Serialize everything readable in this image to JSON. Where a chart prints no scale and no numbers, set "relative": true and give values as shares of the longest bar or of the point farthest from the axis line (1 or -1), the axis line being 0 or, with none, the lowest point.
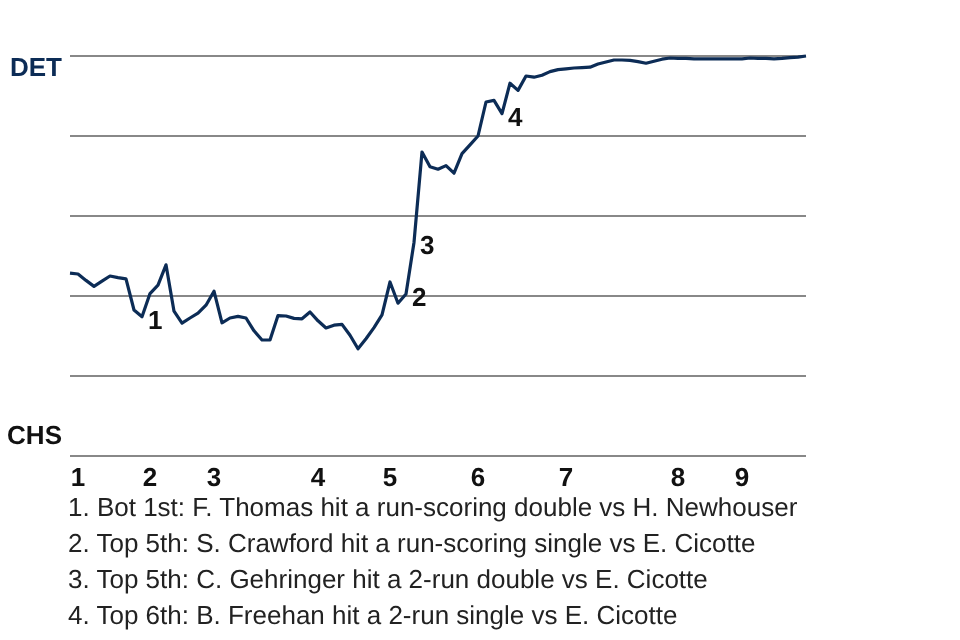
{
  "chart_data": {
    "type": "line",
    "relative": true,
    "grid": "y",
    "marker": "none",
    "line_style": "solid",
    "categories": [
      null,
      "1",
      null,
      null,
      null,
      null,
      null,
      null,
      null,
      null,
      "2",
      null,
      null,
      null,
      null,
      null,
      null,
      null,
      "3",
      null,
      null,
      null,
      null,
      null,
      null,
      null,
      null,
      null,
      null,
      null,
      null,
      "4",
      null,
      null,
      null,
      null,
      null,
      null,
      null,
      null,
      "5",
      null,
      null,
      null,
      null,
      null,
      null,
      null,
      null,
      null,
      null,
      "6",
      null,
      null,
      null,
      null,
      null,
      null,
      null,
      null,
      null,
      null,
      "7",
      null,
      null,
      null,
      null,
      null,
      null,
      null,
      null,
      null,
      null,
      null,
      null,
      null,
      "8",
      null,
      null,
      null,
      null,
      null,
      null,
      null,
      "9",
      null,
      null,
      null,
      null,
      null,
      null,
      null,
      null
    ],
    "series": [
      {
        "color": "#0c2c56",
        "values": [
          0.457,
          0.455,
          0.439,
          0.424,
          0.437,
          0.45,
          0.446,
          0.443,
          0.365,
          0.348,
          0.406,
          0.427,
          0.478,
          0.362,
          0.332,
          0.345,
          0.357,
          0.377,
          0.412,
          0.333,
          0.345,
          0.349,
          0.345,
          0.313,
          0.29,
          0.29,
          0.351,
          0.35,
          0.344,
          0.343,
          0.36,
          0.338,
          0.32,
          0.327,
          0.329,
          0.302,
          0.268,
          0.293,
          0.321,
          0.353,
          0.435,
          0.382,
          0.405,
          0.534,
          0.76,
          0.723,
          0.717,
          0.726,
          0.707,
          0.756,
          0.778,
          0.8,
          0.885,
          0.889,
          0.856,
          0.932,
          0.914,
          0.95,
          0.947,
          0.952,
          0.961,
          0.966,
          0.968,
          0.97,
          0.971,
          0.972,
          0.98,
          0.985,
          0.99,
          0.99,
          0.989,
          0.986,
          0.982,
          0.987,
          0.992,
          0.995,
          0.994,
          0.994,
          0.993,
          0.993,
          0.993,
          0.993,
          0.993,
          0.993,
          0.993,
          0.995,
          0.994,
          0.994,
          0.993,
          0.994,
          0.996,
          0.997,
          1
        ]
      }
    ],
    "annotations": [
      "DET",
      "CHS",
      "1",
      "2",
      "3",
      "4",
      "1. Bot 1st: F. Thomas hit a run-scoring double vs H. Newhouser",
      "2. Top 5th: S. Crawford hit a run-scoring single vs E. Cicotte",
      "3. Top 5th: C. Gehringer hit a 2-run double vs E. Cicotte",
      "4. Top 6th: B. Freehan hit a 2-run single vs E. Cicotte"
    ]
  }
}
